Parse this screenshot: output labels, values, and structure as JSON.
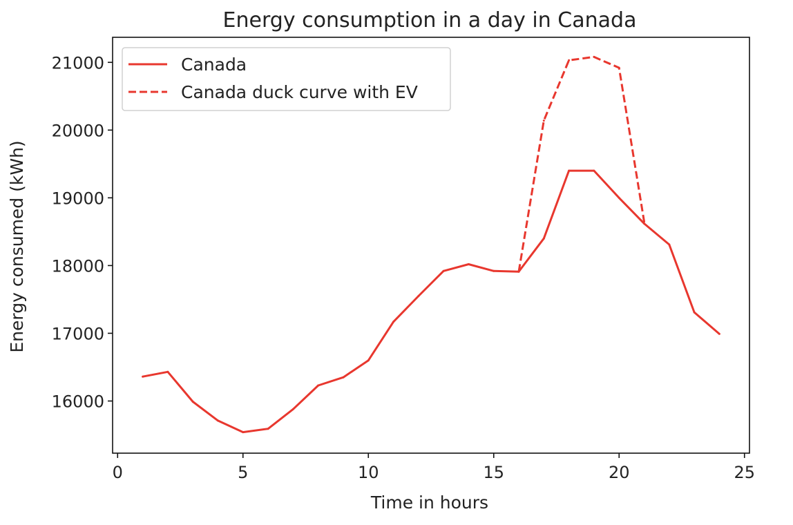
{
  "chart_data": {
    "type": "line",
    "title": "Energy consumption in a day in Canada",
    "xlabel": "Time in hours",
    "ylabel": "Energy consumed (kWh)",
    "xlim": [
      -0.2,
      25.2
    ],
    "ylim": [
      15230,
      21370
    ],
    "xticks": [
      0,
      5,
      10,
      15,
      20,
      25
    ],
    "yticks": [
      16000,
      17000,
      18000,
      19000,
      20000,
      21000
    ],
    "grid": false,
    "legend_position": "top-left",
    "series": [
      {
        "name": "Canada",
        "style": "solid",
        "color": "#e8372e",
        "x": [
          1,
          2,
          3,
          4,
          5,
          6,
          7,
          8,
          9,
          10,
          11,
          12,
          13,
          14,
          15,
          16,
          17,
          18,
          19,
          20,
          21,
          22,
          23,
          24
        ],
        "y": [
          16360,
          16430,
          15990,
          15710,
          15540,
          15590,
          15880,
          16230,
          16350,
          16600,
          17170,
          17550,
          17920,
          18020,
          17920,
          17910,
          18400,
          19400,
          19400,
          19000,
          18620,
          18310,
          17310,
          16990
        ]
      },
      {
        "name": "Canada duck curve with EV",
        "style": "dashed",
        "color": "#e8372e",
        "x": [
          16,
          17,
          18,
          19,
          20,
          21
        ],
        "y": [
          17910,
          20140,
          21030,
          21080,
          20920,
          18650
        ]
      }
    ]
  }
}
